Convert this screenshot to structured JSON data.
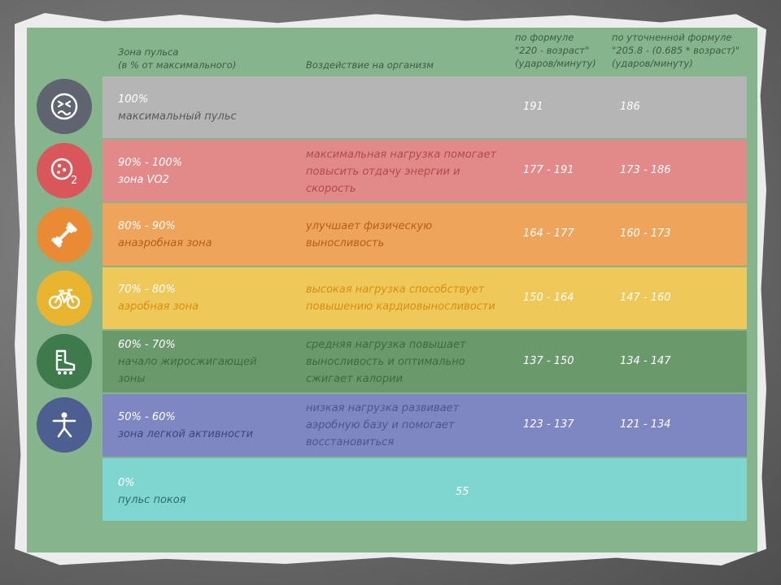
{
  "header": {
    "zone_line1": "Зона пульса",
    "zone_line2": "(в % от максимального)",
    "effect": "Воздействие на организм",
    "formula1_line1": "по формуле",
    "formula1_line2": "\"220 - возраст\"",
    "formula1_line3": "(ударов/минуту)",
    "formula2_line1": "по уточненной формуле",
    "formula2_line2": "\"205.8 - (0.685 * возраст)\"",
    "formula2_line3": "(ударов/минуту)"
  },
  "rows": [
    {
      "percent": "100%",
      "name": "максимальный пульс",
      "effect": "",
      "f1": "191",
      "f2": "186",
      "icon": "dizzy-face-icon"
    },
    {
      "percent": "90% - 100%",
      "name": "зона VO2",
      "effect": "максимальная нагрузка помогает повысить отдачу энергии и скорость",
      "f1": "177 - 191",
      "f2": "173 - 186",
      "icon": "oxygen-o2-icon"
    },
    {
      "percent": "80% - 90%",
      "name": "анаэробная зона",
      "effect": "улучшает физическую выносливость",
      "f1": "164 - 177",
      "f2": "160 - 173",
      "icon": "dumbbell-icon"
    },
    {
      "percent": "70% - 80%",
      "name": "аэробная зона",
      "effect": "высокая нагрузка способствует повышению кардиовыносливости",
      "f1": "150 - 164",
      "f2": "147 - 160",
      "icon": "bicycle-icon"
    },
    {
      "percent": "60% - 70%",
      "name": "начало жиросжигающей зоны",
      "effect": "средняя нагрузка повышает выносливость и оптимально сжигает калории",
      "f1": "137 - 150",
      "f2": "134 - 147",
      "icon": "sneaker-icon"
    },
    {
      "percent": "50% - 60%",
      "name": "зона легкой активности",
      "effect": "низкая нагрузка развивает аэробную базу и помогает восстановиться",
      "f1": "123 - 137",
      "f2": "121 - 134",
      "icon": "stretching-person-icon"
    },
    {
      "percent": "0%",
      "name": "пульс покоя",
      "effect": "",
      "f1": "55",
      "f2": "",
      "icon": ""
    }
  ],
  "colors": {
    "board": "#86b48c",
    "row_max": "#b5b5b5",
    "row_vo2": "#e28a8a",
    "row_anaerobic": "#eea45a",
    "row_aerobic": "#efc85a",
    "row_fatburn": "#6a9a6c",
    "row_light": "#7e87c2",
    "row_rest": "#7fd6d0"
  }
}
